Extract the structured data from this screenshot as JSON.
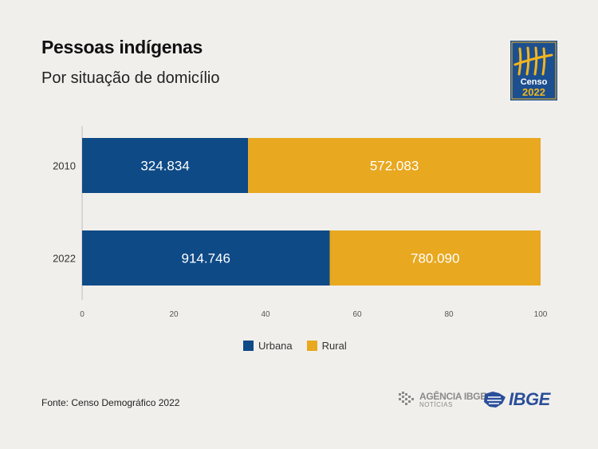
{
  "header": {
    "title": "Pessoas indígenas",
    "subtitle": "Por situação de domicílio"
  },
  "logo": {
    "name": "Censo 2022",
    "line1": "Censo",
    "line2": "2022"
  },
  "colors": {
    "urbana": "#0e4a86",
    "rural": "#e8a820",
    "background": "#f1efec",
    "logo_bg": "#1c4f8f",
    "logo_accent": "#f2b51e"
  },
  "chart_data": {
    "type": "bar",
    "orientation": "horizontal",
    "stacked": true,
    "normalized_percent": true,
    "categories": [
      "2010",
      "2022"
    ],
    "series": [
      {
        "name": "Urbana",
        "values": [
          36.2,
          54.0
        ],
        "labels": [
          "324.834",
          "914.746"
        ]
      },
      {
        "name": "Rural",
        "values": [
          63.8,
          46.0
        ],
        "labels": [
          "572.083",
          "780.090"
        ]
      }
    ],
    "xlim": [
      0,
      100
    ],
    "xticks": [
      "0",
      "20",
      "40",
      "60",
      "80",
      "100"
    ],
    "legend": "bottom-center",
    "grid": false
  },
  "footer": {
    "source": "Fonte: Censo Demográfico 2022",
    "agencia_label": "AGÊNCIA IBGE",
    "agencia_sub": "NOTÍCIAS",
    "ibge_label": "IBGE"
  }
}
